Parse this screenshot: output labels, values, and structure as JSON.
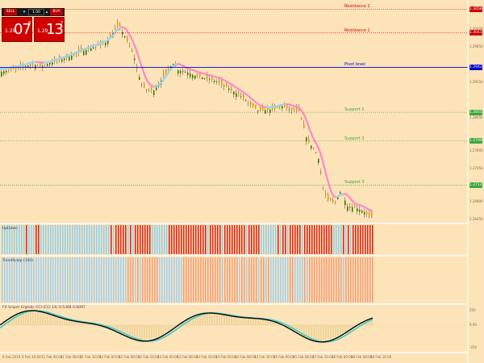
{
  "trade_panel": {
    "sell_label": "SELL",
    "buy_label": "BUY",
    "volume": "1.00",
    "bid": {
      "prefix": "1.29",
      "big": "07",
      "sup": "8"
    },
    "ask": {
      "prefix": "1.29",
      "big": "13",
      "sup": "7"
    }
  },
  "levels": [
    {
      "name": "Resistance 2",
      "price": 1.30582,
      "tag": "1.30582",
      "color": "#d40000",
      "text_color": "#d40000",
      "style": "dotted"
    },
    {
      "name": "Resistance 1",
      "price": 1.30117,
      "tag": "1.30117",
      "color": "#d40000",
      "text_color": "#d40000",
      "style": "dotted"
    },
    {
      "name": "Pivot level",
      "price": 1.29439,
      "tag": "1.29439",
      "color": "#0000cc",
      "text_color": "#0000cc",
      "style": "solid"
    },
    {
      "name": "Support 1",
      "price": 1.28555,
      "tag": "1.28555",
      "color": "#3aa83a",
      "text_color": "#3aa83a",
      "style": "dotted"
    },
    {
      "name": "Support 2",
      "price": 1.2799,
      "tag": "1.27990",
      "color": "#3aa83a",
      "text_color": "#3aa83a",
      "style": "dotted"
    },
    {
      "name": "Support 3",
      "price": 1.27122,
      "tag": "1.27122",
      "color": "#3aa83a",
      "text_color": "#3aa83a",
      "style": "dotted"
    }
  ],
  "price_axis": [
    "1.30200",
    "1.29850",
    "1.29150",
    "1.28450",
    "1.27800",
    "1.27450",
    "1.26800",
    "1.26450"
  ],
  "time_axis": [
    "8 Feb 2019",
    "8 Feb 16:00",
    "11 Feb 00:00",
    "11 Feb 08:00",
    "11 Feb 16:00",
    "12 Feb 00:00",
    "12 Feb 08:00",
    "12 Feb 16:00",
    "13 Feb 00:00",
    "13 Feb 08:00",
    "13 Feb 16:00",
    "14 Feb 00:00",
    "14 Feb 08:00",
    "14 Feb 16:00",
    "15 Feb 00:00",
    "15 Feb 08:00",
    "15 Feb 16:00",
    "18 Feb 00:00",
    "18 Feb 08:00",
    "18 Feb 16:00"
  ],
  "sub1": {
    "label": "UpDown",
    "up_color": "#8fd0ef",
    "down_color": "#e0281c"
  },
  "sub2": {
    "label": "TrendScalp (100)",
    "up_color": "#9fd2f5",
    "down_color": "#f4a07a"
  },
  "sub3": {
    "label": "FX Sniper Ergodic CCI (CCI 14) 0.5384 0.6097",
    "axis_values": [
      "250",
      "0.00",
      "-250"
    ]
  },
  "colors": {
    "background": "#fde3b8",
    "bull_candle": "#3a7a00",
    "bear_candle": "#d9a400",
    "wick": "#222222",
    "ma_up": "#9bd1f2",
    "ma_down": "#ff86c8",
    "osc_main": "#000000",
    "osc_signal": "#33cccc",
    "histogram": "#d8c070"
  },
  "chart_data": {
    "type": "line",
    "title": "",
    "xlabel": "",
    "ylabel": "",
    "ylim": [
      1.264,
      1.307
    ],
    "x": [
      0,
      10,
      20,
      30,
      40,
      50,
      60,
      70,
      80,
      90,
      100,
      110,
      120,
      130,
      140,
      145,
      150,
      155,
      160,
      165,
      170,
      175,
      180,
      190,
      200,
      210,
      215,
      220,
      230,
      240,
      250,
      260,
      270,
      280,
      290,
      300,
      310,
      320,
      330,
      340,
      350,
      360,
      370,
      375,
      380,
      385,
      390,
      395,
      400,
      405,
      410,
      415,
      420,
      425,
      430,
      440,
      450,
      460
    ],
    "series": [
      {
        "values": [
          1.2935,
          1.2938,
          1.2941,
          1.2946,
          1.295,
          1.2945,
          1.2952,
          1.2956,
          1.2962,
          1.2968,
          1.2975,
          1.298,
          1.2986,
          1.2992,
          1.3012,
          1.3025,
          1.3016,
          1.3002,
          1.2985,
          1.2968,
          1.2935,
          1.291,
          1.29,
          1.2898,
          1.292,
          1.2945,
          1.2952,
          1.2938,
          1.2935,
          1.2928,
          1.2924,
          1.292,
          1.2915,
          1.2905,
          1.2895,
          1.2885,
          1.287,
          1.2858,
          1.286,
          1.2862,
          1.2868,
          1.286,
          1.2858,
          1.283,
          1.28,
          1.279,
          1.278,
          1.276,
          1.2705,
          1.2685,
          1.268,
          1.2678,
          1.27,
          1.269,
          1.267,
          1.2668,
          1.266,
          1.265
        ]
      }
    ],
    "grid": false,
    "legend": "none"
  }
}
